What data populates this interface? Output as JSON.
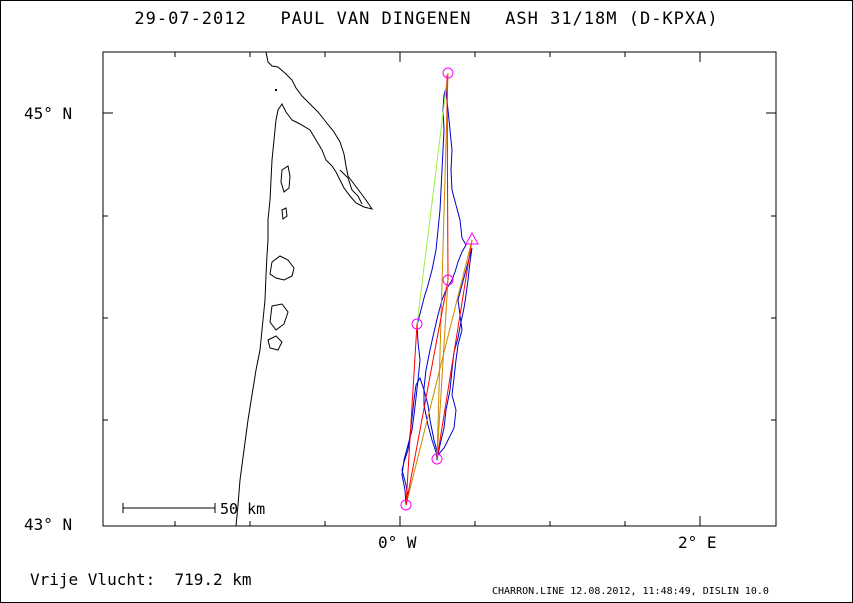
{
  "title": "29-07-2012   PAUL VAN DINGENEN   ASH 31/18M (D-KPXA)",
  "axes": {
    "lat_labels": [
      "45° N",
      "43° N"
    ],
    "lon_labels": [
      "0° W",
      "2° E"
    ]
  },
  "scale_bar": {
    "label": "50 km"
  },
  "summary": {
    "label": "Vrije Vlucht:",
    "distance": "719.2 km"
  },
  "footer": "CHARRON.LINE 12.08.2012, 11:48:49, DISLIN 10.0",
  "colors": {
    "frame": "#000000",
    "coastline": "#000000",
    "track": "#0000cc",
    "task_leg": "#ff0000",
    "alt_leg": "#cc8800",
    "closing_leg": "#99ee44",
    "turnpoint": "#ff00ff"
  },
  "icons": {
    "start": "triangle-icon",
    "turnpoint": "circle-icon"
  }
}
